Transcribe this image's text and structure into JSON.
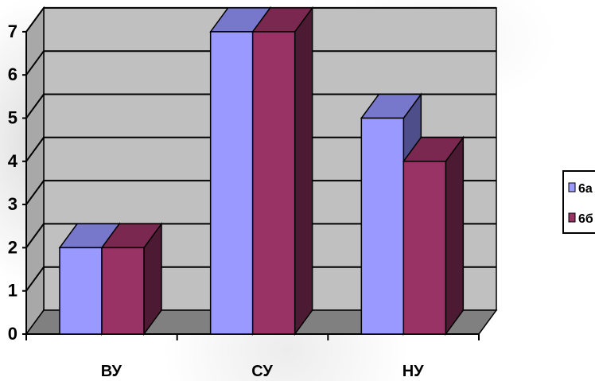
{
  "chart_data": {
    "type": "bar",
    "title": "",
    "xlabel": "",
    "ylabel": "",
    "categories": [
      "ВУ",
      "СУ",
      "НУ"
    ],
    "series": [
      {
        "name": "6а",
        "values": [
          2,
          7,
          5
        ],
        "color": "#9999ff",
        "top_color": "#7777cc",
        "side_color": "#4e4e8a"
      },
      {
        "name": "6б",
        "values": [
          2,
          7,
          4
        ],
        "color": "#993366",
        "top_color": "#7a2850",
        "side_color": "#4d1a33"
      }
    ],
    "ylim": [
      0,
      7
    ],
    "yticks": [
      0,
      1,
      2,
      3,
      4,
      5,
      6,
      7
    ],
    "grid": true,
    "legend_position": "right",
    "wall_color": "#c0c0c0",
    "floor_color": "#808080"
  }
}
